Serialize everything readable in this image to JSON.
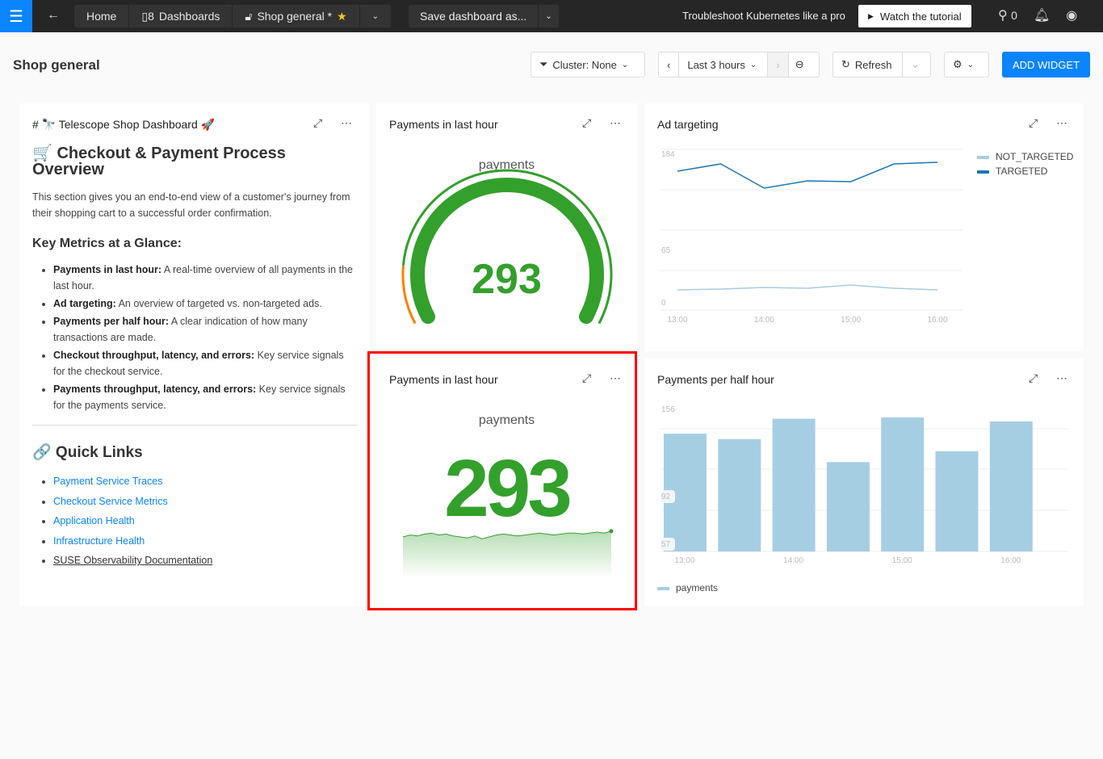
{
  "topbar": {
    "home": "Home",
    "dashboards": "Dashboards",
    "current": "Shop general *",
    "save": "Save dashboard as...",
    "promo": "Troubleshoot Kubernetes like a pro",
    "tutorial": "Watch the tutorial",
    "pin_count": "0"
  },
  "toolbar": {
    "title": "Shop general",
    "cluster": "Cluster: None",
    "range": "Last 3 hours",
    "refresh": "Refresh",
    "add_widget": "ADD WIDGET"
  },
  "markdown": {
    "header": "# 🔭 Telescope Shop Dashboard 🚀",
    "h1": "🛒 Checkout & Payment Process Overview",
    "intro": "This section gives you an end-to-end view of a customer's journey from their shopping cart to a successful order confirmation.",
    "h2": "Key Metrics at a Glance:",
    "metrics": [
      {
        "b": "Payments in last hour:",
        "t": " A real-time overview of all payments in the last hour."
      },
      {
        "b": "Ad targeting:",
        "t": " An overview of targeted vs. non-targeted ads."
      },
      {
        "b": "Payments per half hour:",
        "t": " A clear indication of how many transactions are made."
      },
      {
        "b": "Checkout throughput, latency, and errors:",
        "t": " Key service signals for the checkout service."
      },
      {
        "b": "Payments throughput, latency, and errors:",
        "t": " Key service signals for the payments service."
      }
    ],
    "links_title": "🔗 Quick Links",
    "links": [
      "Payment Service Traces",
      "Checkout Service Metrics",
      "Application Health",
      "Infrastructure Health",
      "SUSE Observability Documentation"
    ]
  },
  "gauge": {
    "title": "Payments in last hour",
    "label": "payments",
    "value": "293",
    "fill_fraction": 1.0,
    "color": "#33a02c",
    "threshold_color": "#ff7f00"
  },
  "stat": {
    "title": "Payments in last hour",
    "label": "payments",
    "value": "293",
    "color": "#33a02c",
    "sparkline": [
      60,
      62,
      61,
      63,
      64,
      62,
      63,
      61,
      60,
      59,
      61,
      58,
      60,
      62,
      63,
      62,
      61,
      62,
      63,
      64,
      63,
      62,
      63,
      64,
      64,
      63,
      64,
      65,
      64,
      66
    ]
  },
  "chart_data": [
    {
      "type": "line",
      "title": "Ad targeting",
      "x": [
        "13:00",
        "13:30",
        "14:00",
        "14:30",
        "15:00",
        "15:30",
        "16:00"
      ],
      "xticks": [
        "13:00",
        "14:00",
        "15:00",
        "16:00"
      ],
      "yticks": [
        "184",
        "65",
        "0"
      ],
      "ylim": [
        0,
        200
      ],
      "legend": "right",
      "series": [
        {
          "name": "NOT_TARGETED",
          "color": "#a6cee3",
          "values": [
            16,
            17,
            19,
            18,
            22,
            18,
            16
          ]
        },
        {
          "name": "TARGETED",
          "color": "#1f78b4",
          "values": [
            163,
            172,
            142,
            151,
            150,
            172,
            174
          ]
        }
      ]
    },
    {
      "type": "bar",
      "title": "Payments per half hour",
      "x": [
        "13:00",
        "13:30",
        "14:00",
        "14:30",
        "15:00",
        "15:30",
        "16:00"
      ],
      "xticks": [
        "13:00",
        "14:00",
        "15:00",
        "16:00"
      ],
      "yticks": [
        "156",
        "92",
        "57"
      ],
      "legend": "bottom-left",
      "series": [
        {
          "name": "payments",
          "color": "#a6cee3",
          "values": [
            138,
            134,
            149,
            117,
            150,
            125,
            147
          ]
        }
      ]
    }
  ]
}
